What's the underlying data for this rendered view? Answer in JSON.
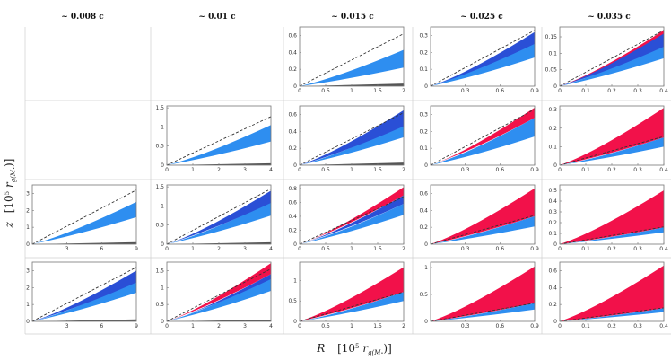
{
  "figure": {
    "column_titles": [
      "~ 0.008 c",
      "~ 0.01 c",
      "~ 0.015 c",
      "~ 0.025 c",
      "~ 0.035 c"
    ],
    "xlabel_text": "R",
    "xlabel_units": "[10",
    "xlabel_units_exp": "5",
    "xlabel_units_rest": " r",
    "xlabel_units_sub": "g(M",
    "xlabel_units_sub_bullet": "•",
    "xlabel_units_close": ")]",
    "ylabel_text": "z",
    "ylabel_units": "[10",
    "ylabel_units_exp": "5",
    "ylabel_units_rest": " r",
    "ylabel_units_sub": "g(M",
    "ylabel_units_sub_bullet": "•",
    "ylabel_units_close": ")]"
  },
  "colors": {
    "blue": "#2e8ef0",
    "dark_blue": "#2a4fd6",
    "red": "#f2114a",
    "gray": "#555555",
    "dash": "#333333",
    "frame": "#777777"
  },
  "chart_data": [
    {
      "type": "area",
      "row": 0,
      "col": 2,
      "xlim": [
        0,
        2
      ],
      "ylim": [
        0,
        0.7
      ],
      "xticks": [
        "0",
        "0.5",
        "1",
        "1.5",
        "2"
      ],
      "yticks": [
        "0",
        "0.2",
        "0.4",
        "0.6"
      ],
      "dash_end": 0.62,
      "blue": [
        0.22,
        0.43
      ],
      "dark": null,
      "red": null,
      "gray_end": 0.03
    },
    {
      "type": "area",
      "row": 0,
      "col": 3,
      "xlim": [
        0,
        0.9
      ],
      "ylim": [
        0,
        0.35
      ],
      "xticks": [
        "",
        "0.3",
        "0.6",
        "0.9"
      ],
      "yticks": [
        "0",
        "0.1",
        "0.2",
        "0.3"
      ],
      "dash_end": 0.33,
      "blue": [
        0.17,
        0.28
      ],
      "dark": [
        0.25,
        0.32
      ],
      "red": null,
      "gray_end": null
    },
    {
      "type": "area",
      "row": 0,
      "col": 4,
      "xlim": [
        0,
        0.42
      ],
      "ylim": [
        0,
        0.18
      ],
      "xticks": [
        "0",
        "0.1",
        "0.2",
        "0.3",
        "0.4"
      ],
      "yticks": [
        "0",
        "0.05",
        "0.1",
        "0.15"
      ],
      "dash_end": 0.17,
      "blue": [
        0.085,
        0.13
      ],
      "dark": [
        0.12,
        0.16
      ],
      "red": [
        0.13,
        0.17
      ],
      "gray_end": null
    },
    {
      "type": "area",
      "row": 1,
      "col": 1,
      "xlim": [
        0,
        4.3
      ],
      "ylim": [
        0,
        1.55
      ],
      "xticks": [
        "0",
        "1",
        "2",
        "3",
        "4"
      ],
      "yticks": [
        "0",
        "0.5",
        "1",
        "1.5"
      ],
      "dash_end": 1.27,
      "blue": [
        0.62,
        1.05
      ],
      "dark": null,
      "red": null,
      "gray_end": 0.05
    },
    {
      "type": "area",
      "row": 1,
      "col": 2,
      "xlim": [
        0,
        2
      ],
      "ylim": [
        0,
        0.7
      ],
      "xticks": [
        "0",
        "0.5",
        "1",
        "1.5",
        "2"
      ],
      "yticks": [
        "0",
        "0.2",
        "0.4",
        "0.6"
      ],
      "dash_end": 0.62,
      "blue": [
        0.33,
        0.48
      ],
      "dark": [
        0.46,
        0.65
      ],
      "red": null,
      "gray_end": 0.03
    },
    {
      "type": "area",
      "row": 1,
      "col": 3,
      "xlim": [
        0,
        0.9
      ],
      "ylim": [
        0,
        0.35
      ],
      "xticks": [
        "",
        "0.3",
        "0.6",
        "0.9"
      ],
      "yticks": [
        "0",
        "0.1",
        "0.2",
        "0.3"
      ],
      "dash_end": 0.33,
      "blue": [
        0.17,
        0.28
      ],
      "dark": null,
      "red": [
        0.28,
        0.34
      ],
      "gray_end": null
    },
    {
      "type": "area",
      "row": 1,
      "col": 4,
      "xlim": [
        0,
        0.42
      ],
      "ylim": [
        0,
        0.32
      ],
      "xticks": [
        "0",
        "0.1",
        "0.2",
        "0.3",
        "0.4"
      ],
      "yticks": [
        "0",
        "0.1",
        "0.2",
        "0.3"
      ],
      "dash_end": 0.155,
      "blue": [
        0.1,
        0.15
      ],
      "dark": null,
      "red": [
        0.15,
        0.31
      ],
      "gray_end": null
    },
    {
      "type": "area",
      "row": 2,
      "col": 0,
      "xlim": [
        0,
        9
      ],
      "ylim": [
        0,
        3.5
      ],
      "xticks": [
        "",
        "3",
        "6",
        "9"
      ],
      "yticks": [
        "0",
        "1",
        "2",
        "3"
      ],
      "dash_end": 3.2,
      "blue": [
        1.6,
        2.5
      ],
      "dark": null,
      "red": null,
      "gray_end": 0.12
    },
    {
      "type": "area",
      "row": 2,
      "col": 1,
      "xlim": [
        0,
        4.3
      ],
      "ylim": [
        0,
        1.55
      ],
      "xticks": [
        "0",
        "1",
        "2",
        "3",
        "4"
      ],
      "yticks": [
        "0",
        "0.5",
        "1",
        "1.5"
      ],
      "dash_end": 1.45,
      "blue": [
        0.75,
        1.1
      ],
      "dark": [
        1.08,
        1.4
      ],
      "red": null,
      "gray_end": 0.05
    },
    {
      "type": "area",
      "row": 2,
      "col": 2,
      "xlim": [
        0,
        2
      ],
      "ylim": [
        0,
        0.85
      ],
      "xticks": [
        "0",
        "0.5",
        "1",
        "1.5",
        "2"
      ],
      "yticks": [
        "0",
        "0.2",
        "0.4",
        "0.6",
        "0.8"
      ],
      "dash_end": 0.68,
      "blue": [
        0.42,
        0.58
      ],
      "dark": [
        0.58,
        0.7
      ],
      "red": [
        0.7,
        0.82
      ],
      "gray_end": null
    },
    {
      "type": "area",
      "row": 2,
      "col": 3,
      "xlim": [
        0,
        0.9
      ],
      "ylim": [
        0,
        0.7
      ],
      "xticks": [
        "",
        "0.3",
        "0.6",
        "0.9"
      ],
      "yticks": [
        "0",
        "0.2",
        "0.4",
        "0.6"
      ],
      "dash_end": 0.34,
      "blue": [
        0.21,
        0.33
      ],
      "dark": null,
      "red": [
        0.33,
        0.66
      ],
      "gray_end": null
    },
    {
      "type": "area",
      "row": 2,
      "col": 4,
      "xlim": [
        0,
        0.42
      ],
      "ylim": [
        0,
        0.55
      ],
      "xticks": [
        "0",
        "0.1",
        "0.2",
        "0.3",
        "0.4"
      ],
      "yticks": [
        "0",
        "0.1",
        "0.2",
        "0.3",
        "0.4",
        "0.5"
      ],
      "dash_end": 0.16,
      "blue": [
        0.11,
        0.155
      ],
      "dark": null,
      "red": [
        0.155,
        0.5
      ],
      "gray_end": null
    },
    {
      "type": "area",
      "row": 3,
      "col": 0,
      "xlim": [
        0,
        9
      ],
      "ylim": [
        0,
        3.5
      ],
      "xticks": [
        "",
        "3",
        "6",
        "9"
      ],
      "yticks": [
        "0",
        "1",
        "2",
        "3"
      ],
      "dash_end": 3.2,
      "blue": [
        1.7,
        2.4
      ],
      "dark": [
        2.3,
        3.0
      ],
      "red": null,
      "gray_end": 0.12
    },
    {
      "type": "area",
      "row": 3,
      "col": 1,
      "xlim": [
        0,
        4.3
      ],
      "ylim": [
        0,
        1.75
      ],
      "xticks": [
        "0",
        "1",
        "2",
        "3",
        "4"
      ],
      "yticks": [
        "0",
        "0.5",
        "1",
        "1.5"
      ],
      "dash_end": 1.55,
      "blue": [
        0.9,
        1.3
      ],
      "dark": [
        1.25,
        1.4
      ],
      "red": [
        1.4,
        1.72
      ],
      "gray_end": 0.05
    },
    {
      "type": "area",
      "row": 3,
      "col": 2,
      "xlim": [
        0,
        2
      ],
      "ylim": [
        0,
        1.45
      ],
      "xticks": [
        "0",
        "0.5",
        "1",
        "1.5",
        "2"
      ],
      "yticks": [
        "0",
        "0.5",
        "1"
      ],
      "dash_end": 0.72,
      "blue": [
        0.5,
        0.72
      ],
      "dark": null,
      "red": [
        0.72,
        1.33
      ],
      "gray_end": null
    },
    {
      "type": "area",
      "row": 3,
      "col": 3,
      "xlim": [
        0,
        0.9
      ],
      "ylim": [
        0,
        1.1
      ],
      "xticks": [
        "",
        "0.3",
        "0.6",
        "0.9"
      ],
      "yticks": [
        "0",
        "0.5",
        "1"
      ],
      "dash_end": 0.34,
      "blue": [
        0.22,
        0.34
      ],
      "dark": null,
      "red": [
        0.34,
        1.02
      ],
      "gray_end": null
    },
    {
      "type": "area",
      "row": 3,
      "col": 4,
      "xlim": [
        0,
        0.42
      ],
      "ylim": [
        0,
        0.7
      ],
      "xticks": [
        "0",
        "0.1",
        "0.2",
        "0.3",
        "0.4"
      ],
      "yticks": [
        "0",
        "0.2",
        "0.4",
        "0.6"
      ],
      "dash_end": 0.16,
      "blue": [
        0.11,
        0.155
      ],
      "dark": null,
      "red": [
        0.155,
        0.66
      ],
      "gray_end": null
    }
  ]
}
